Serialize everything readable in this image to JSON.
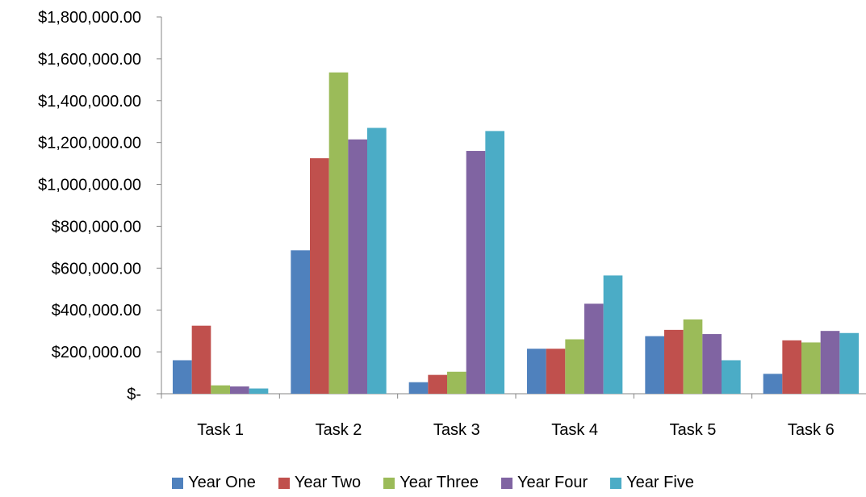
{
  "chart_data": {
    "type": "bar",
    "categories": [
      "Task 1",
      "Task 2",
      "Task 3",
      "Task 4",
      "Task 5",
      "Task 6"
    ],
    "series": [
      {
        "name": "Year One",
        "color": "#4F81BD",
        "values": [
          160000,
          685000,
          55000,
          215000,
          275000,
          95000
        ]
      },
      {
        "name": "Year Two",
        "color": "#C0504D",
        "values": [
          325000,
          1125000,
          90000,
          215000,
          305000,
          255000
        ]
      },
      {
        "name": "Year Three",
        "color": "#9BBB59",
        "values": [
          40000,
          1535000,
          105000,
          260000,
          355000,
          245000
        ]
      },
      {
        "name": "Year Four",
        "color": "#8064A2",
        "values": [
          35000,
          1215000,
          1160000,
          430000,
          285000,
          300000
        ]
      },
      {
        "name": "Year Five",
        "color": "#4BACC6",
        "values": [
          25000,
          1270000,
          1255000,
          565000,
          160000,
          290000
        ]
      }
    ],
    "ylim": [
      0,
      1800000
    ],
    "ytick_values": [
      0,
      200000,
      400000,
      600000,
      800000,
      1000000,
      1200000,
      1400000,
      1600000,
      1800000
    ],
    "ytick_labels": [
      "$-",
      "$200,000.00",
      "$400,000.00",
      "$600,000.00",
      "$800,000.00",
      "$1,000,000.00",
      "$1,200,000.00",
      "$1,400,000.00",
      "$1,600,000.00",
      "$1,800,000.00"
    ],
    "grid": false,
    "legend_position": "bottom"
  }
}
